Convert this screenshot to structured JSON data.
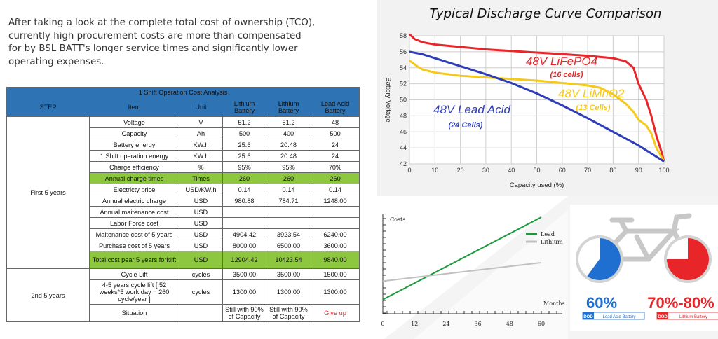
{
  "intro_text": "After taking a look at the complete total cost of ownership (TCO), currently high procurement costs are more than compensated for by BSL BATT's longer service times and significantly lower operating expenses.",
  "table": {
    "title": "1 Shift Operation Cost Analysis",
    "headers": [
      "STEP",
      "Item",
      "Unit",
      "Lithium Battery",
      "Lithium Battery",
      "Lead Acid Battery"
    ],
    "groups": [
      {
        "step": "First 5 years",
        "rows": [
          {
            "item": "Voltage",
            "unit": "V",
            "v1": "51.2",
            "v2": "51.2",
            "v3": "48",
            "highlight": false
          },
          {
            "item": "Capacity",
            "unit": "Ah",
            "v1": "500",
            "v2": "400",
            "v3": "500",
            "highlight": false
          },
          {
            "item": "Battery energy",
            "unit": "KW.h",
            "v1": "25.6",
            "v2": "20.48",
            "v3": "24",
            "highlight": false
          },
          {
            "item": "1 Shift operation energy",
            "unit": "KW.h",
            "v1": "25.6",
            "v2": "20.48",
            "v3": "24",
            "highlight": false
          },
          {
            "item": "Charge efficiency",
            "unit": "%",
            "v1": "95%",
            "v2": "95%",
            "v3": "70%",
            "highlight": false
          },
          {
            "item": "Annual charge times",
            "unit": "Times",
            "v1": "260",
            "v2": "260",
            "v3": "260",
            "highlight": true
          },
          {
            "item": "Electricty price",
            "unit": "USD/KW.h",
            "v1": "0.14",
            "v2": "0.14",
            "v3": "0.14",
            "highlight": false
          },
          {
            "item": "Annual electric charge",
            "unit": "USD",
            "v1": "980.88",
            "v2": "784.71",
            "v3": "1248.00",
            "highlight": false
          },
          {
            "item": "Annual maitenance cost",
            "unit": "USD",
            "v1": "",
            "v2": "",
            "v3": "",
            "highlight": false
          },
          {
            "item": "Labor Force cost",
            "unit": "USD",
            "v1": "",
            "v2": "",
            "v3": "",
            "highlight": false
          },
          {
            "item": "Maitenance cost of 5 years",
            "unit": "USD",
            "v1": "4904.42",
            "v2": "3923.54",
            "v3": "6240.00",
            "highlight": false
          },
          {
            "item": "Purchase cost of 5 years",
            "unit": "USD",
            "v1": "8000.00",
            "v2": "6500.00",
            "v3": "3600.00",
            "highlight": false
          },
          {
            "item": "Total cost pear 5 years forklift",
            "unit": "USD",
            "v1": "12904.42",
            "v2": "10423.54",
            "v3": "9840.00",
            "highlight": true
          }
        ]
      },
      {
        "step": "2nd 5 years",
        "rows": [
          {
            "item": "Cycle Lift",
            "unit": "cycles",
            "v1": "3500.00",
            "v2": "3500.00",
            "v3": "1500.00",
            "highlight": false
          },
          {
            "item": "4-5 years cycle lift [ 52 weeks*5 work day = 260 cycle/year ]",
            "unit": "cycles",
            "v1": "1300.00",
            "v2": "1300.00",
            "v3": "1300.00",
            "highlight": false
          },
          {
            "item": "Situation",
            "unit": "",
            "v1": "Still with 90% of Capacity",
            "v2": "Still with 90% of Capacity",
            "v3": "Give up",
            "highlight": false,
            "v3_red": true
          }
        ]
      }
    ],
    "colors": {
      "header": "#2e74b5",
      "highlight": "#8dc63f",
      "give_up": "#e03030"
    }
  },
  "chart_data": [
    {
      "type": "line",
      "title": "Typical Discharge Curve Comparison",
      "xlabel": "Capacity used (%)",
      "ylabel": "Battery Voltage",
      "xlim": [
        0,
        100
      ],
      "ylim": [
        42,
        58
      ],
      "xticks": [
        0,
        10,
        20,
        30,
        40,
        50,
        60,
        70,
        80,
        90,
        100
      ],
      "yticks": [
        42,
        44,
        46,
        48,
        50,
        52,
        54,
        56,
        58
      ],
      "grid": true,
      "series": [
        {
          "name": "48V LiFePO4",
          "sub": "(16 cells)",
          "color": "#e8262a",
          "label_color": "#e8262a",
          "x": [
            0,
            2,
            5,
            10,
            20,
            30,
            40,
            50,
            60,
            70,
            80,
            85,
            88,
            90,
            93,
            95,
            97,
            99,
            100
          ],
          "y": [
            58.2,
            57.6,
            57.2,
            56.9,
            56.6,
            56.3,
            56.1,
            55.9,
            55.7,
            55.5,
            55.2,
            54.8,
            54.0,
            52.0,
            50.0,
            48.0,
            45.5,
            43.5,
            42.3
          ]
        },
        {
          "name": "48V LiMnO2",
          "sub": "(13 Cells)",
          "color": "#f5c91a",
          "label_color": "#f5c91a",
          "x": [
            0,
            3,
            5,
            10,
            20,
            30,
            40,
            50,
            60,
            70,
            75,
            80,
            85,
            88,
            90,
            93,
            95,
            97,
            100
          ],
          "y": [
            54.9,
            54.2,
            53.8,
            53.4,
            53.0,
            52.8,
            52.6,
            52.4,
            52.1,
            51.8,
            51.5,
            50.7,
            49.5,
            48.5,
            47.5,
            46.8,
            45.8,
            44.0,
            42.3
          ]
        },
        {
          "name": "48V Lead Acid",
          "sub": "(24 Cells)",
          "color": "#2e3db8",
          "label_color": "#2e3db8",
          "x": [
            0,
            5,
            10,
            20,
            30,
            40,
            50,
            60,
            70,
            80,
            90,
            95,
            100
          ],
          "y": [
            56.0,
            55.7,
            55.2,
            54.2,
            53.2,
            52.1,
            50.8,
            49.3,
            47.7,
            46.0,
            44.3,
            43.3,
            42.3
          ]
        }
      ]
    },
    {
      "type": "line",
      "title": "",
      "ylabel": "Costs",
      "xlabel": "Months",
      "xlim": [
        0,
        60
      ],
      "xticks": [
        0,
        12,
        24,
        36,
        48,
        60
      ],
      "series": [
        {
          "name": "Lead",
          "color": "#1a9a3a",
          "x": [
            0,
            60
          ],
          "y": [
            10,
            68
          ]
        },
        {
          "name": "Lithium",
          "color": "#c0c0c0",
          "x": [
            0,
            60
          ],
          "y": [
            23,
            36
          ]
        }
      ]
    },
    {
      "type": "pie",
      "title": "",
      "series": [
        {
          "label": "Lead Acid Battery",
          "tag": "DOD",
          "value": 60,
          "value_text": "60%",
          "color": "#1e6fd0",
          "text_color": "#1e6fd0"
        },
        {
          "label": "Lithium Battery",
          "tag": "DOD",
          "value": 75,
          "value_text": "70%-80%",
          "color": "#e8262a",
          "text_color": "#e8262a"
        }
      ]
    }
  ]
}
